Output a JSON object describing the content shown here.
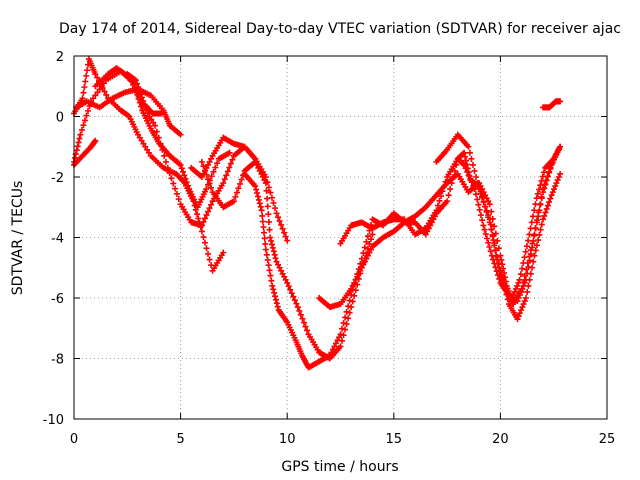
{
  "chart_data": {
    "type": "scatter",
    "title": "Day 174 of 2014, Sidereal Day-to-day VTEC variation (SDTVAR) for receiver ajac",
    "xlabel": "GPS time / hours",
    "ylabel": "SDTVAR / TECUs",
    "xlim": [
      0,
      25
    ],
    "ylim": [
      -10,
      2
    ],
    "x_ticks": [
      0,
      5,
      10,
      15,
      20,
      25
    ],
    "y_ticks": [
      -10,
      -8,
      -6,
      -4,
      -2,
      0,
      2
    ],
    "x_tick_labels": [
      "0",
      "5",
      "10",
      "15",
      "20",
      "25"
    ],
    "y_tick_labels": [
      "-10",
      "-8",
      "-6",
      "-4",
      "-2",
      "0",
      "2"
    ],
    "grid": true,
    "marker": "+",
    "series_color": "#ff0000",
    "series": [
      {
        "name": "track-1",
        "points": [
          [
            0.0,
            -1.6
          ],
          [
            0.4,
            -1.3
          ],
          [
            0.8,
            -1.0
          ],
          [
            1.0,
            -0.8
          ]
        ]
      },
      {
        "name": "track-2",
        "points": [
          [
            0.0,
            -1.5
          ],
          [
            0.3,
            -0.6
          ],
          [
            0.8,
            0.5
          ],
          [
            1.5,
            1.2
          ],
          [
            2.2,
            1.5
          ],
          [
            2.8,
            1.1
          ],
          [
            3.2,
            0.2
          ],
          [
            3.6,
            -0.4
          ],
          [
            4.0,
            -0.9
          ],
          [
            4.5,
            -1.3
          ],
          [
            5.0,
            -1.6
          ],
          [
            5.4,
            -2.4
          ],
          [
            5.8,
            -3.0
          ],
          [
            6.2,
            -2.4
          ],
          [
            6.8,
            -1.4
          ],
          [
            7.3,
            -1.2
          ]
        ]
      },
      {
        "name": "track-3",
        "points": [
          [
            0.0,
            0.1
          ],
          [
            0.4,
            0.6
          ],
          [
            0.7,
            1.9
          ],
          [
            1.0,
            1.4
          ],
          [
            1.6,
            0.6
          ],
          [
            2.2,
            0.2
          ],
          [
            2.6,
            0.0
          ],
          [
            3.0,
            -0.6
          ],
          [
            3.6,
            -1.3
          ],
          [
            4.2,
            -1.7
          ],
          [
            4.8,
            -1.9
          ],
          [
            5.2,
            -2.2
          ],
          [
            5.6,
            -2.8
          ],
          [
            6.0,
            -3.8
          ],
          [
            6.5,
            -5.1
          ],
          [
            7.0,
            -4.5
          ]
        ]
      },
      {
        "name": "track-4",
        "points": [
          [
            0.1,
            0.3
          ],
          [
            0.6,
            0.5
          ],
          [
            1.2,
            0.3
          ],
          [
            1.8,
            0.6
          ],
          [
            2.4,
            0.8
          ],
          [
            3.0,
            0.9
          ],
          [
            3.6,
            0.7
          ],
          [
            4.2,
            0.2
          ],
          [
            4.5,
            -0.3
          ],
          [
            5.0,
            -0.6
          ]
        ]
      },
      {
        "name": "track-5",
        "points": [
          [
            1.0,
            1.0
          ],
          [
            1.6,
            1.4
          ],
          [
            2.0,
            1.6
          ],
          [
            2.6,
            1.3
          ],
          [
            3.2,
            0.4
          ],
          [
            3.8,
            -0.3
          ],
          [
            4.4,
            -1.7
          ],
          [
            5.0,
            -2.9
          ],
          [
            5.5,
            -3.5
          ],
          [
            6.0,
            -3.6
          ],
          [
            6.5,
            -2.8
          ],
          [
            7.0,
            -2.2
          ],
          [
            7.5,
            -1.3
          ],
          [
            8.0,
            -1.0
          ],
          [
            8.5,
            -1.4
          ]
        ]
      },
      {
        "name": "track-6",
        "points": [
          [
            2.5,
            1.4
          ],
          [
            2.9,
            1.2
          ],
          [
            3.3,
            0.4
          ],
          [
            3.7,
            0.1
          ],
          [
            4.1,
            0.1
          ]
        ]
      },
      {
        "name": "track-7",
        "points": [
          [
            5.5,
            -1.7
          ],
          [
            6.0,
            -2.0
          ],
          [
            6.5,
            -1.3
          ],
          [
            7.0,
            -0.7
          ],
          [
            7.5,
            -0.9
          ],
          [
            8.0,
            -1.0
          ],
          [
            8.5,
            -1.4
          ],
          [
            9.0,
            -2.0
          ],
          [
            9.5,
            -3.2
          ],
          [
            10.0,
            -4.1
          ]
        ]
      },
      {
        "name": "track-8",
        "points": [
          [
            6.0,
            -1.5
          ],
          [
            6.5,
            -2.5
          ],
          [
            7.0,
            -3.0
          ],
          [
            7.5,
            -2.8
          ],
          [
            8.0,
            -1.8
          ],
          [
            8.5,
            -1.5
          ],
          [
            9.0,
            -2.2
          ],
          [
            9.2,
            -4.0
          ],
          [
            9.5,
            -4.8
          ],
          [
            10.0,
            -5.5
          ],
          [
            10.5,
            -6.3
          ],
          [
            11.0,
            -7.2
          ],
          [
            11.5,
            -7.8
          ],
          [
            12.0,
            -8.0
          ],
          [
            12.5,
            -7.6
          ],
          [
            13.0,
            -6.3
          ],
          [
            13.5,
            -5.0
          ],
          [
            14.0,
            -3.9
          ]
        ]
      },
      {
        "name": "track-9",
        "points": [
          [
            8.0,
            -1.9
          ],
          [
            8.5,
            -2.3
          ],
          [
            8.8,
            -3.1
          ],
          [
            9.0,
            -4.4
          ],
          [
            9.3,
            -5.6
          ],
          [
            9.6,
            -6.4
          ],
          [
            10.0,
            -6.8
          ],
          [
            10.4,
            -7.4
          ],
          [
            10.7,
            -7.9
          ],
          [
            11.0,
            -8.3
          ],
          [
            11.5,
            -8.1
          ],
          [
            12.0,
            -7.9
          ],
          [
            12.5,
            -7.2
          ],
          [
            13.0,
            -5.9
          ],
          [
            13.5,
            -4.7
          ],
          [
            14.0,
            -3.4
          ],
          [
            14.5,
            -3.6
          ],
          [
            15.0,
            -3.2
          ],
          [
            15.5,
            -3.5
          ],
          [
            16.0,
            -3.3
          ],
          [
            16.5,
            -3.0
          ],
          [
            17.0,
            -2.6
          ],
          [
            17.5,
            -2.2
          ],
          [
            18.0,
            -1.9
          ],
          [
            18.5,
            -2.5
          ],
          [
            19.0,
            -2.2
          ],
          [
            19.5,
            -2.9
          ],
          [
            20.0,
            -4.6
          ],
          [
            20.3,
            -5.6
          ],
          [
            20.6,
            -6.2
          ],
          [
            21.0,
            -5.7
          ],
          [
            21.5,
            -4.2
          ],
          [
            22.0,
            -2.4
          ],
          [
            22.5,
            -1.4
          ],
          [
            22.8,
            -1.0
          ]
        ]
      },
      {
        "name": "track-10",
        "points": [
          [
            11.5,
            -6.0
          ],
          [
            12.0,
            -6.3
          ],
          [
            12.5,
            -6.2
          ],
          [
            13.0,
            -5.7
          ],
          [
            13.5,
            -5.0
          ],
          [
            14.0,
            -4.3
          ],
          [
            14.5,
            -4.0
          ],
          [
            15.0,
            -3.8
          ],
          [
            15.5,
            -3.5
          ],
          [
            16.0,
            -3.5
          ],
          [
            16.5,
            -3.9
          ],
          [
            17.0,
            -3.2
          ],
          [
            17.5,
            -2.8
          ],
          [
            18.0,
            -1.4
          ],
          [
            18.3,
            -1.2
          ],
          [
            18.6,
            -2.1
          ],
          [
            19.0,
            -2.3
          ],
          [
            19.5,
            -3.5
          ],
          [
            20.0,
            -5.1
          ],
          [
            20.4,
            -6.2
          ],
          [
            20.8,
            -6.7
          ],
          [
            21.2,
            -6.0
          ],
          [
            21.6,
            -4.6
          ],
          [
            22.0,
            -3.4
          ],
          [
            22.4,
            -2.6
          ],
          [
            22.8,
            -1.9
          ]
        ]
      },
      {
        "name": "track-11",
        "points": [
          [
            12.5,
            -4.2
          ],
          [
            13.0,
            -3.6
          ],
          [
            13.5,
            -3.5
          ],
          [
            14.0,
            -3.7
          ],
          [
            14.5,
            -3.5
          ],
          [
            15.0,
            -3.4
          ],
          [
            15.5,
            -3.4
          ],
          [
            16.0,
            -3.9
          ],
          [
            16.5,
            -3.7
          ],
          [
            17.0,
            -3.1
          ],
          [
            17.5,
            -2.0
          ],
          [
            18.0,
            -1.4
          ],
          [
            18.3,
            -1.6
          ],
          [
            18.8,
            -2.4
          ],
          [
            19.2,
            -3.6
          ],
          [
            19.6,
            -4.6
          ],
          [
            20.0,
            -5.5
          ],
          [
            20.4,
            -5.9
          ],
          [
            20.8,
            -6.1
          ],
          [
            21.2,
            -5.4
          ],
          [
            21.6,
            -3.9
          ],
          [
            22.0,
            -2.5
          ],
          [
            22.4,
            -1.6
          ],
          [
            22.8,
            -1.0
          ]
        ]
      },
      {
        "name": "track-12",
        "points": [
          [
            17.0,
            -1.5
          ],
          [
            17.5,
            -1.1
          ],
          [
            18.0,
            -0.6
          ],
          [
            18.5,
            -1.0
          ],
          [
            19.0,
            -2.4
          ],
          [
            19.5,
            -3.4
          ],
          [
            19.8,
            -4.6
          ],
          [
            20.1,
            -5.5
          ],
          [
            20.5,
            -6.1
          ],
          [
            20.9,
            -5.4
          ],
          [
            21.3,
            -4.1
          ],
          [
            21.7,
            -2.7
          ],
          [
            22.1,
            -1.7
          ],
          [
            22.5,
            -1.4
          ]
        ]
      },
      {
        "name": "track-13",
        "points": [
          [
            22.0,
            0.3
          ],
          [
            22.3,
            0.3
          ],
          [
            22.6,
            0.5
          ],
          [
            22.8,
            0.5
          ]
        ]
      }
    ]
  }
}
